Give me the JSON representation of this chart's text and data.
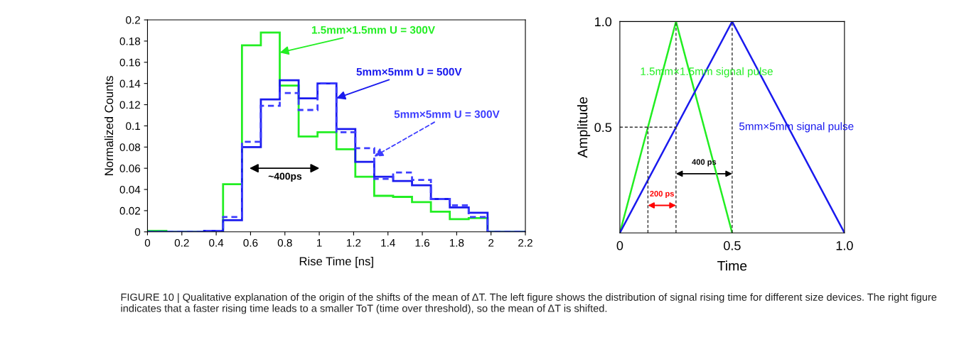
{
  "chart_data": [
    {
      "type": "histogram",
      "xlabel": "Rise Time [ns]",
      "ylabel": "Normalized Counts",
      "bins": [
        0,
        0.11,
        0.22,
        0.33,
        0.44,
        0.55,
        0.66,
        0.77,
        0.88,
        0.99,
        1.1,
        1.21,
        1.32,
        1.43,
        1.54,
        1.65,
        1.76,
        1.87,
        1.98,
        2.09,
        2.2
      ],
      "series": [
        {
          "name": "1.5mm×1.5mm U = 300V",
          "color": "#22ee22",
          "line_style": "solid",
          "values": [
            0.001,
            0,
            0,
            0.001,
            0.045,
            0.176,
            0.188,
            0.138,
            0.09,
            0.094,
            0.078,
            0.052,
            0.034,
            0.033,
            0.028,
            0.019,
            0.012,
            0.013,
            0,
            0
          ]
        },
        {
          "name": "5mm×5mm U = 500V",
          "color": "#1a1aee",
          "line_style": "solid",
          "values": [
            0,
            0,
            0,
            0.001,
            0.011,
            0.08,
            0.125,
            0.143,
            0.126,
            0.14,
            0.097,
            0.066,
            0.052,
            0.048,
            0.044,
            0.031,
            0.023,
            0.018,
            0,
            0
          ]
        },
        {
          "name": "5mm×5mm U = 300V",
          "color": "#3d3dff",
          "line_style": "dashed",
          "values": [
            0,
            0,
            0,
            0.001,
            0.014,
            0.085,
            0.119,
            0.131,
            0.115,
            0.14,
            0.094,
            0.079,
            0.05,
            0.056,
            0.049,
            0.031,
            0.025,
            0.014,
            0,
            0
          ]
        }
      ],
      "xlim": [
        0,
        2.2
      ],
      "xticks": [
        0,
        0.2,
        0.4,
        0.6,
        0.8,
        1,
        1.2,
        1.4,
        1.6,
        1.8,
        2,
        2.2
      ],
      "ylim": [
        0,
        0.2
      ],
      "yticks": [
        0,
        0.02,
        0.04,
        0.06,
        0.08,
        0.1,
        0.12,
        0.14,
        0.16,
        0.18,
        0.2
      ],
      "grid": false,
      "annotations": [
        "~400ps",
        "FIGURE 10 | Qualitative explanation of the origin of the shifts of the mean of ΔT. The left figure shows the distribution of signal rising time for different size devices. The right figure indicates that a faster rising time leads to a smaller ToT (time over threshold), so the mean of ΔT is shifted."
      ]
    },
    {
      "type": "line",
      "xlabel": "Time",
      "ylabel": "Amplitude",
      "series": [
        {
          "name": "1.5mm×1.5mm signal pulse",
          "color": "#22ee22",
          "x": [
            0,
            0.25,
            0.5
          ],
          "values": [
            0,
            1,
            0
          ]
        },
        {
          "name": "5mm×5mm signal pulse",
          "color": "#1a1aee",
          "x": [
            0,
            0.5,
            1
          ],
          "values": [
            0,
            1,
            0
          ]
        }
      ],
      "xlim": [
        0,
        1
      ],
      "xticks": [
        0,
        0.5,
        {
          "value": 1,
          "label": "1.0"
        }
      ],
      "ylim": [
        0,
        1
      ],
      "yticks": [
        0.5,
        {
          "value": 1,
          "label": "1.0"
        }
      ],
      "grid": false,
      "marker": "none",
      "line_style": "solid",
      "ref_lines": [
        {
          "axis": "x",
          "value": 0.125,
          "line_style": "dashed",
          "color": "#333333"
        },
        {
          "axis": "x",
          "value": 0.25,
          "line_style": "dashed",
          "color": "#333333"
        },
        {
          "axis": "x",
          "value": 0.5,
          "line_style": "dashed",
          "color": "#333333"
        },
        {
          "axis": "y",
          "value": 0.5,
          "line_style": "dashed",
          "color": "#333333"
        }
      ],
      "annotations": [
        "400 ps",
        "200 ps"
      ]
    }
  ]
}
